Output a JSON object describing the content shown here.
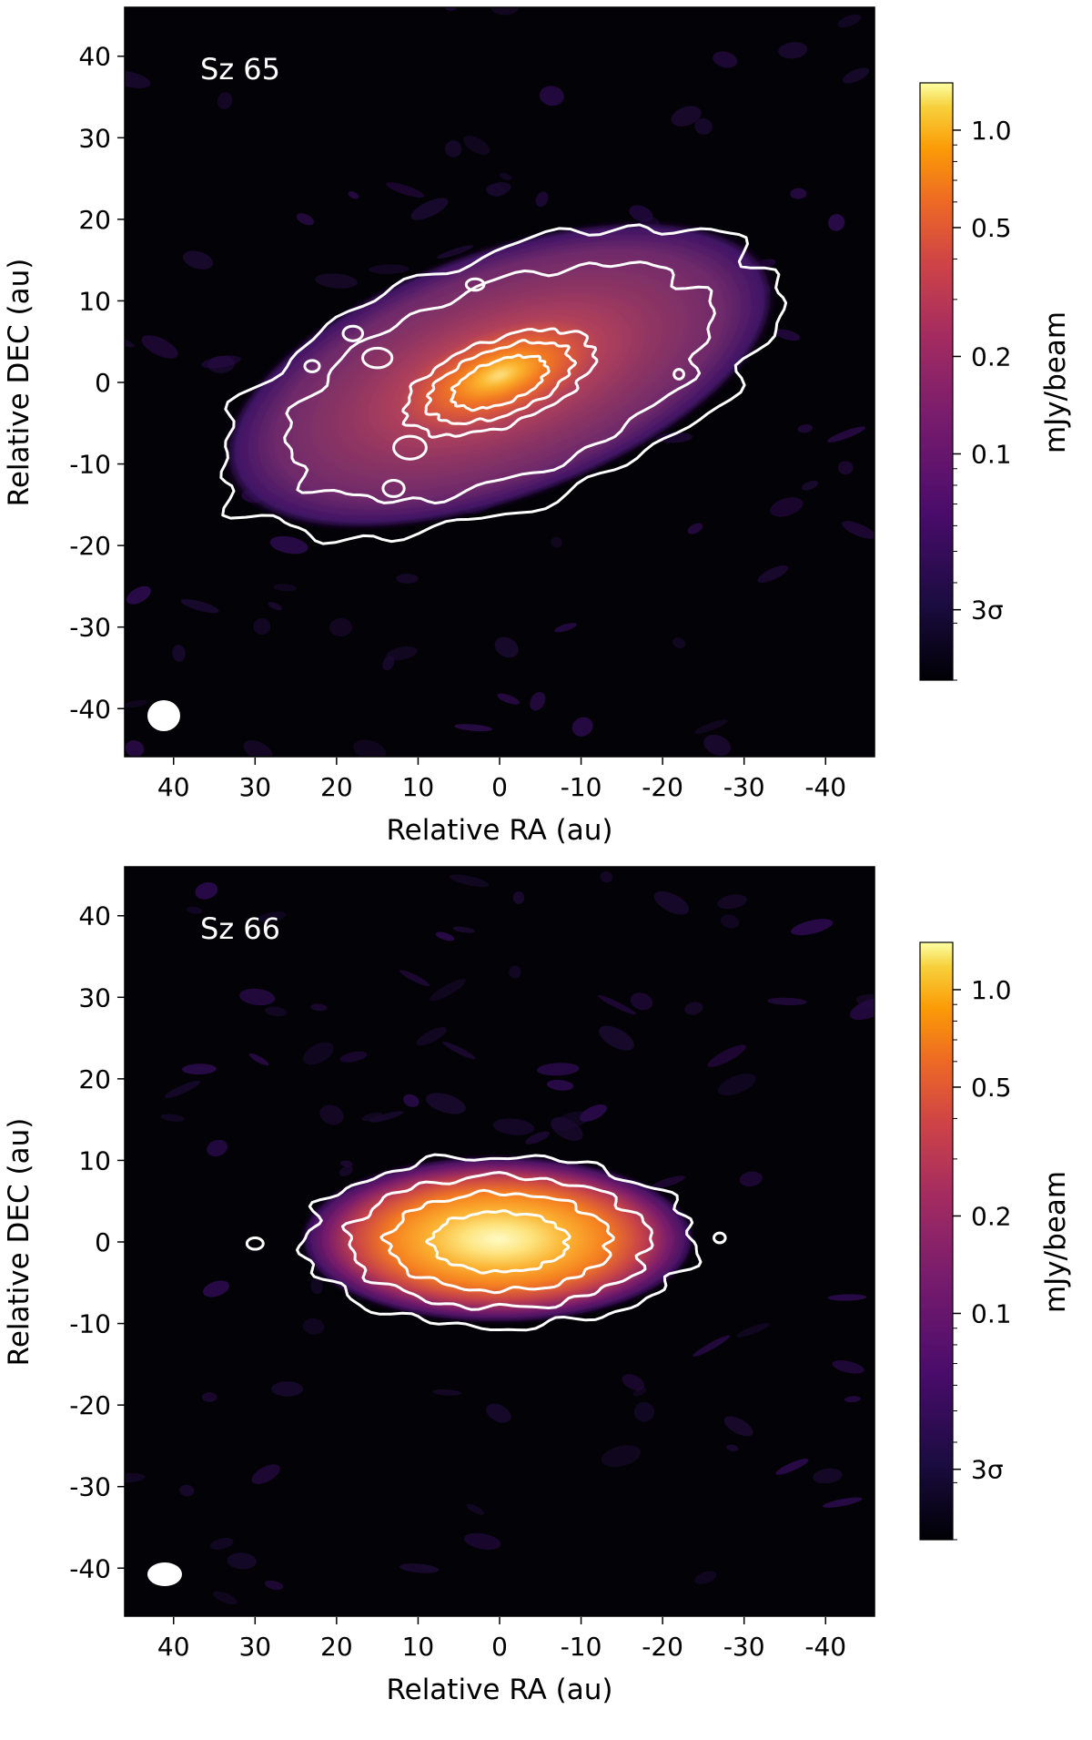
{
  "chart_data": [
    {
      "type": "heatmap",
      "panel_label": "Sz 65",
      "xlabel": "Relative RA (au)",
      "ylabel": "Relative DEC (au)",
      "xlim": [
        46,
        -46
      ],
      "ylim": [
        -46,
        46
      ],
      "xticks": [
        40,
        30,
        20,
        10,
        0,
        -10,
        -20,
        -30,
        -40
      ],
      "yticks": [
        40,
        30,
        20,
        10,
        0,
        -10,
        -20,
        -30,
        -40
      ],
      "colorbar": {
        "label": "mJy/beam",
        "scale": "log",
        "ticks": [
          {
            "value": 1.0,
            "label": "1.0"
          },
          {
            "value": 0.5,
            "label": "0.5"
          },
          {
            "value": 0.2,
            "label": "0.2"
          },
          {
            "value": 0.1,
            "label": "0.1"
          },
          {
            "value": 0.033,
            "label": "3σ"
          }
        ],
        "range": [
          0.02,
          1.4
        ]
      },
      "disk": {
        "center": [
          0,
          0
        ],
        "semi_major_au": 36,
        "semi_minor_au": 15.5,
        "position_angle_deg": 20
      },
      "beam": {
        "center": [
          42,
          -41.5
        ],
        "major_au": 4.0,
        "minor_au": 3.6
      },
      "contour_scales": [
        1.0,
        0.76,
        0.34,
        0.26,
        0.17
      ]
    },
    {
      "type": "heatmap",
      "panel_label": "Sz 66",
      "xlabel": "Relative RA (au)",
      "ylabel": "Relative DEC (au)",
      "xlim": [
        46,
        -46
      ],
      "ylim": [
        -46,
        46
      ],
      "xticks": [
        40,
        30,
        20,
        10,
        0,
        -10,
        -20,
        -30,
        -40
      ],
      "yticks": [
        40,
        30,
        20,
        10,
        0,
        -10,
        -20,
        -30,
        -40
      ],
      "colorbar": {
        "label": "mJy/beam",
        "scale": "log",
        "ticks": [
          {
            "value": 1.0,
            "label": "1.0"
          },
          {
            "value": 0.5,
            "label": "0.5"
          },
          {
            "value": 0.2,
            "label": "0.2"
          },
          {
            "value": 0.1,
            "label": "0.1"
          },
          {
            "value": 0.033,
            "label": "3σ"
          }
        ],
        "range": [
          0.02,
          1.4
        ]
      },
      "disk": {
        "center": [
          0,
          0
        ],
        "semi_major_au": 24,
        "semi_minor_au": 10.5,
        "position_angle_deg": 0
      },
      "beam": {
        "center": [
          42,
          -41
        ],
        "major_au": 4.2,
        "minor_au": 3.0
      },
      "contour_scales": [
        1.0,
        0.77,
        0.57,
        0.35
      ]
    }
  ]
}
